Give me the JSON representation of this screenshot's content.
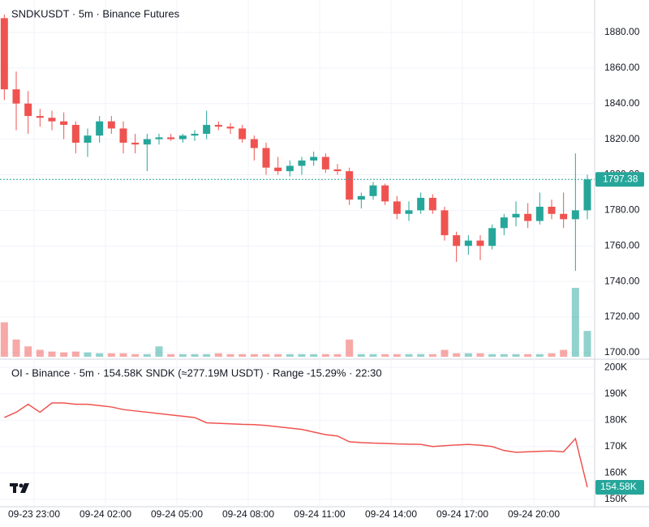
{
  "chart_data": [
    {
      "type": "candlestick",
      "title": "SNDKUSDT · 5m · Binance Futures",
      "x": [
        "09-23 21:30",
        "09-23 22:00",
        "09-23 22:30",
        "09-23 23:00",
        "09-23 23:30",
        "09-24 00:00",
        "09-24 00:30",
        "09-24 01:00",
        "09-24 01:30",
        "09-24 02:00",
        "09-24 02:30",
        "09-24 03:00",
        "09-24 03:30",
        "09-24 04:00",
        "09-24 04:30",
        "09-24 05:00",
        "09-24 05:30",
        "09-24 06:00",
        "09-24 06:30",
        "09-24 07:00",
        "09-24 07:30",
        "09-24 08:00",
        "09-24 08:30",
        "09-24 09:00",
        "09-24 09:30",
        "09-24 10:00",
        "09-24 10:30",
        "09-24 11:00",
        "09-24 11:30",
        "09-24 12:00",
        "09-24 12:30",
        "09-24 13:00",
        "09-24 13:30",
        "09-24 14:00",
        "09-24 14:30",
        "09-24 15:00",
        "09-24 15:30",
        "09-24 16:00",
        "09-24 16:30",
        "09-24 17:00",
        "09-24 17:30",
        "09-24 18:00",
        "09-24 18:30",
        "09-24 19:00",
        "09-24 19:30",
        "09-24 20:00",
        "09-24 20:30",
        "09-24 21:00",
        "09-24 21:30",
        "09-24 22:00"
      ],
      "open": [
        1888,
        1848,
        1840,
        1833,
        1832,
        1830,
        1828,
        1818,
        1822,
        1830,
        1826,
        1818,
        1817,
        1820,
        1821,
        1820,
        1822,
        1823,
        1828,
        1827,
        1826,
        1820,
        1815,
        1804,
        1802,
        1805,
        1808,
        1810,
        1803,
        1802,
        1786,
        1788,
        1794,
        1785,
        1778,
        1780,
        1787,
        1780,
        1766,
        1760,
        1763,
        1760,
        1770,
        1776,
        1778,
        1774,
        1782,
        1778,
        1775,
        1780
      ],
      "high": [
        1890,
        1858,
        1847,
        1837,
        1836,
        1835,
        1830,
        1826,
        1833,
        1833,
        1830,
        1823,
        1823,
        1823,
        1823,
        1823,
        1825,
        1836,
        1830,
        1829,
        1828,
        1822,
        1818,
        1810,
        1808,
        1810,
        1813,
        1812,
        1806,
        1804,
        1790,
        1796,
        1795,
        1788,
        1785,
        1790,
        1789,
        1782,
        1768,
        1766,
        1766,
        1772,
        1778,
        1785,
        1784,
        1790,
        1786,
        1790,
        1812,
        1800
      ],
      "low": [
        1842,
        1825,
        1823,
        1827,
        1825,
        1820,
        1812,
        1810,
        1818,
        1823,
        1812,
        1812,
        1802,
        1817,
        1819,
        1818,
        1819,
        1820,
        1825,
        1823,
        1818,
        1808,
        1800,
        1800,
        1799,
        1800,
        1805,
        1801,
        1800,
        1783,
        1781,
        1786,
        1783,
        1775,
        1774,
        1778,
        1778,
        1763,
        1751,
        1755,
        1752,
        1758,
        1766,
        1771,
        1770,
        1772,
        1775,
        1770,
        1746,
        1775
      ],
      "close": [
        1848,
        1840,
        1833,
        1832,
        1830,
        1828,
        1818,
        1822,
        1830,
        1826,
        1818,
        1817,
        1820,
        1821,
        1820,
        1822,
        1823,
        1828,
        1827,
        1826,
        1820,
        1815,
        1804,
        1802,
        1805,
        1808,
        1810,
        1803,
        1802,
        1786,
        1788,
        1794,
        1785,
        1778,
        1780,
        1787,
        1780,
        1766,
        1760,
        1763,
        1760,
        1770,
        1776,
        1778,
        1774,
        1782,
        1778,
        1775,
        1780,
        1797.38
      ],
      "volume": [
        40,
        20,
        12,
        8,
        6,
        5,
        6,
        5,
        4,
        4,
        4,
        3,
        3,
        12,
        3,
        3,
        3,
        3,
        4,
        3,
        3,
        3,
        3,
        3,
        3,
        3,
        3,
        3,
        3,
        20,
        3,
        3,
        3,
        3,
        3,
        3,
        3,
        8,
        4,
        4,
        4,
        3,
        3,
        3,
        3,
        3,
        4,
        8,
        80,
        30
      ],
      "up_color": "#26a69a",
      "down_color": "#ef5350",
      "ylim": [
        1697.7,
        1898.2
      ],
      "yticks": [
        {
          "value": 1700,
          "label": "1700.00"
        },
        {
          "value": 1720,
          "label": "1720.00"
        },
        {
          "value": 1740,
          "label": "1740.00"
        },
        {
          "value": 1760,
          "label": "1760.00"
        },
        {
          "value": 1780,
          "label": "1780.00"
        },
        {
          "value": 1800,
          "label": "1800.00"
        },
        {
          "value": 1820,
          "label": "1820.00"
        },
        {
          "value": 1840,
          "label": "1840.00"
        },
        {
          "value": 1860,
          "label": "1860.00"
        },
        {
          "value": 1880,
          "label": "1880.00"
        }
      ],
      "grid": true
    },
    {
      "type": "line",
      "title": "OI - Binance · 5m · 154.58K SNDK (≈277.19M USDT) · Range -15.29% · 22:30",
      "x": [
        "09-23 21:30",
        "09-23 22:00",
        "09-23 22:30",
        "09-23 23:00",
        "09-23 23:30",
        "09-24 00:00",
        "09-24 00:30",
        "09-24 01:00",
        "09-24 01:30",
        "09-24 02:00",
        "09-24 02:30",
        "09-24 03:00",
        "09-24 03:30",
        "09-24 04:00",
        "09-24 04:30",
        "09-24 05:00",
        "09-24 05:30",
        "09-24 06:00",
        "09-24 06:30",
        "09-24 07:00",
        "09-24 07:30",
        "09-24 08:00",
        "09-24 08:30",
        "09-24 09:00",
        "09-24 09:30",
        "09-24 10:00",
        "09-24 10:30",
        "09-24 11:00",
        "09-24 11:30",
        "09-24 12:00",
        "09-24 12:30",
        "09-24 13:00",
        "09-24 13:30",
        "09-24 14:00",
        "09-24 14:30",
        "09-24 15:00",
        "09-24 15:30",
        "09-24 16:00",
        "09-24 16:30",
        "09-24 17:00",
        "09-24 17:30",
        "09-24 18:00",
        "09-24 18:30",
        "09-24 19:00",
        "09-24 19:30",
        "09-24 20:00",
        "09-24 20:30",
        "09-24 21:00",
        "09-24 21:30",
        "09-24 22:00"
      ],
      "values": [
        181000,
        183000,
        186000,
        183000,
        186500,
        186500,
        186000,
        186000,
        185500,
        185000,
        184000,
        183500,
        183000,
        182500,
        182000,
        181500,
        181000,
        179000,
        178800,
        178600,
        178400,
        178300,
        178000,
        177500,
        177000,
        176500,
        175500,
        174500,
        174000,
        171800,
        171500,
        171300,
        171200,
        171000,
        170900,
        170800,
        170000,
        170300,
        170600,
        170800,
        170500,
        170000,
        168500,
        167800,
        168000,
        168200,
        168300,
        168000,
        173000,
        154580
      ],
      "last_value_label": "154.58K",
      "color": "#ef5350",
      "ylim": [
        147200,
        203100
      ],
      "yticks": [
        {
          "value": 150000,
          "label": "150K"
        },
        {
          "value": 160000,
          "label": "160K"
        },
        {
          "value": 170000,
          "label": "170K"
        },
        {
          "value": 180000,
          "label": "180K"
        },
        {
          "value": 190000,
          "label": "190K"
        },
        {
          "value": 200000,
          "label": "200K"
        }
      ],
      "xticks": [
        "09-23 23:00",
        "09-24 02:00",
        "09-24 05:00",
        "09-24 08:00",
        "09-24 11:00",
        "09-24 14:00",
        "09-24 17:00",
        "09-24 20:00"
      ],
      "grid": true
    }
  ]
}
